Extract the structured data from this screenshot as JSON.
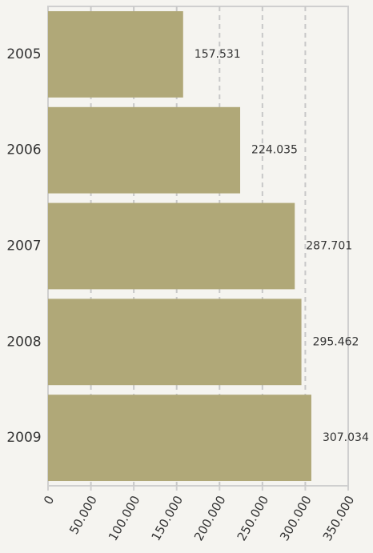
{
  "chart_data": {
    "type": "bar",
    "orientation": "horizontal",
    "categories": [
      "2005",
      "2006",
      "2007",
      "2008",
      "2009"
    ],
    "values": [
      157.531,
      224.035,
      287.701,
      295.462,
      307.034
    ],
    "color": "#b0a878",
    "xlim": [
      0,
      350
    ],
    "xticks": [
      0,
      {
        "value": 50,
        "label": "50.000"
      },
      {
        "value": 100,
        "label": "100.000"
      },
      {
        "value": 150,
        "label": "150.000"
      },
      {
        "value": 200,
        "label": "200.000"
      },
      {
        "value": 250,
        "label": "250.000"
      },
      {
        "value": 300,
        "label": "300.000"
      },
      {
        "value": 350,
        "label": "350.000"
      }
    ],
    "grid": true
  }
}
